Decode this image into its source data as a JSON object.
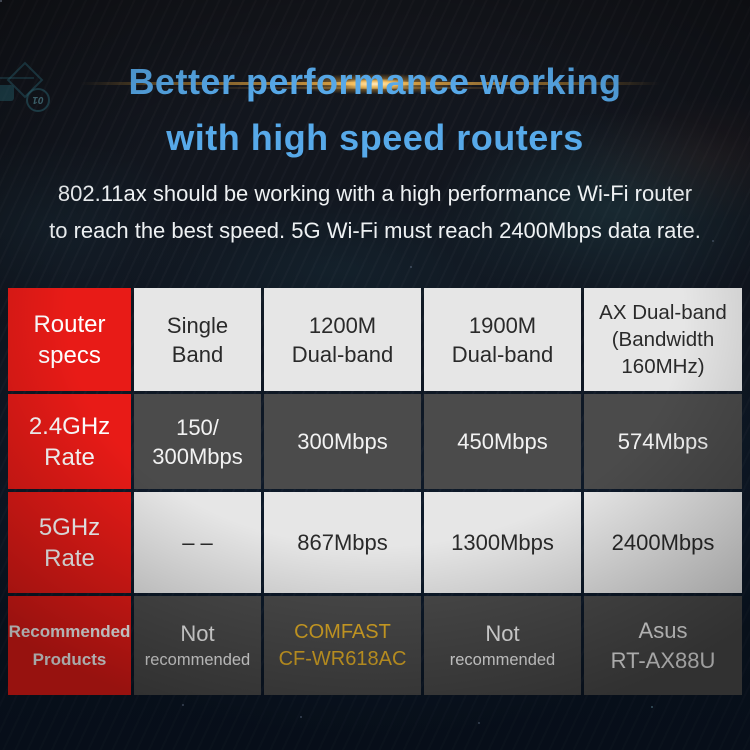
{
  "header": {
    "title_line1": "Better performance working",
    "title_line2": "with high speed routers",
    "subtitle_line1": "802.11ax should be working with a high performance Wi-Fi router",
    "subtitle_line2": "to reach the best speed. 5G Wi-Fi must reach 2400Mbps data rate."
  },
  "decor": {
    "chip_label": "01"
  },
  "colors": {
    "title_blue": "#57a9e9",
    "accent_red": "#e81b17",
    "light_cell": "#e6e6e6",
    "dark_cell": "#4b4b4b",
    "gold_text": "#e2ae27",
    "flare_gold": "#f0b44e"
  },
  "table": {
    "rows": [
      {
        "label": [
          "Router",
          "specs"
        ],
        "cells": [
          [
            "Single",
            "Band"
          ],
          [
            "1200M",
            "Dual-band"
          ],
          [
            "1900M",
            "Dual-band"
          ],
          [
            "AX Dual-band",
            "(Bandwidth",
            "160MHz)"
          ]
        ]
      },
      {
        "label": [
          "2.4GHz",
          "Rate"
        ],
        "cells": [
          [
            "150/",
            "300Mbps"
          ],
          [
            "300Mbps"
          ],
          [
            "450Mbps"
          ],
          [
            "574Mbps"
          ]
        ]
      },
      {
        "label": [
          "5GHz",
          "Rate"
        ],
        "cells": [
          [
            "– –"
          ],
          [
            "867Mbps"
          ],
          [
            "1300Mbps"
          ],
          [
            "2400Mbps"
          ]
        ]
      },
      {
        "label": [
          "Recommended",
          "Products"
        ],
        "cells": [
          [
            "Not",
            "recommended"
          ],
          [
            "COMFAST",
            "CF-WR618AC"
          ],
          [
            "Not",
            "recommended"
          ],
          [
            "Asus",
            "RT-AX88U"
          ]
        ]
      }
    ]
  }
}
